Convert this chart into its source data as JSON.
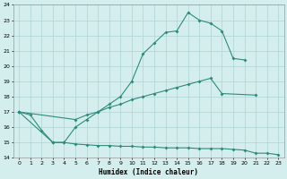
{
  "line1_x": [
    0,
    1,
    2,
    3,
    4,
    5,
    6,
    7,
    8,
    9,
    10,
    11,
    12,
    13,
    14,
    15,
    16,
    17,
    18,
    19,
    20
  ],
  "line1_y": [
    17.0,
    16.8,
    15.8,
    15.0,
    15.0,
    16.0,
    16.5,
    17.0,
    17.5,
    18.0,
    19.0,
    20.8,
    21.5,
    22.2,
    22.3,
    23.5,
    23.0,
    22.8,
    22.3,
    20.5,
    20.4
  ],
  "line2_x": [
    0,
    5,
    6,
    7,
    8,
    9,
    10,
    11,
    12,
    13,
    14,
    15,
    16,
    17,
    18,
    21
  ],
  "line2_y": [
    17.0,
    16.5,
    16.8,
    17.0,
    17.3,
    17.5,
    17.8,
    18.0,
    18.2,
    18.4,
    18.6,
    18.8,
    19.0,
    19.2,
    18.2,
    18.1
  ],
  "line3_x": [
    0,
    3,
    4,
    5,
    6,
    7,
    8,
    9,
    10,
    11,
    12,
    13,
    14,
    15,
    16,
    17,
    18,
    19,
    20,
    21,
    22,
    23
  ],
  "line3_y": [
    17.0,
    15.0,
    15.0,
    14.9,
    14.85,
    14.8,
    14.8,
    14.75,
    14.75,
    14.7,
    14.7,
    14.65,
    14.65,
    14.65,
    14.6,
    14.6,
    14.6,
    14.55,
    14.5,
    14.3,
    14.3,
    14.2
  ],
  "color": "#2e8b7a",
  "bg_color": "#d4eeee",
  "grid_color": "#aed4d4",
  "xlabel": "Humidex (Indice chaleur)",
  "ylim": [
    14,
    24
  ],
  "xlim": [
    -0.5,
    23.5
  ],
  "yticks": [
    14,
    15,
    16,
    17,
    18,
    19,
    20,
    21,
    22,
    23,
    24
  ],
  "xticks": [
    0,
    1,
    2,
    3,
    4,
    5,
    6,
    7,
    8,
    9,
    10,
    11,
    12,
    13,
    14,
    15,
    16,
    17,
    18,
    19,
    20,
    21,
    22,
    23
  ]
}
